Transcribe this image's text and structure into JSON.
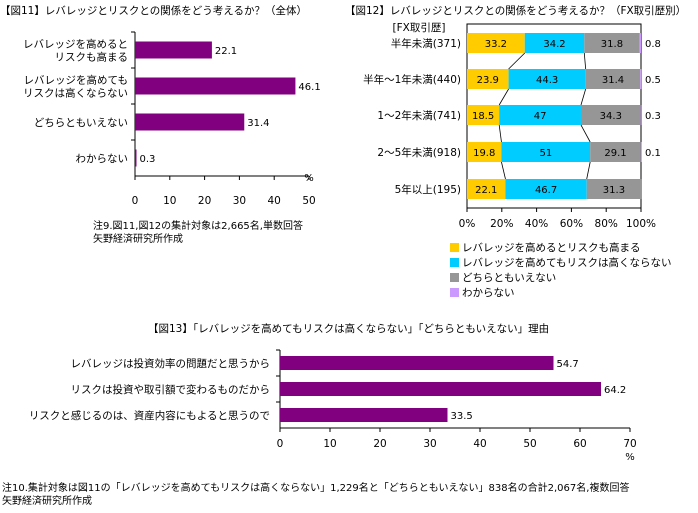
{
  "fig11": {
    "title": "【図11】レバレッジとリスクとの関係をどう考えるか？（全体）",
    "note_lines": [
      "注9.図11,図12の集計対象は2,665名,単数回答",
      "矢野経済研究所作成"
    ]
  },
  "fig12": {
    "title": "【図12】レバレッジとリスクとの関係をどう考えるか？（FX取引歴別）"
  },
  "fig13": {
    "title": "【図13】「レバレッジを高めてもリスクは高くならない」「どちらともいえない」理由",
    "note_lines": [
      "注10.集計対象は図11の「レバレッジを高めてもリスクは高くならない」1,229名と「どちらともいえない」838名の合計2,067名,複数回答",
      "矢野経済研究所作成"
    ]
  },
  "chart_data": [
    {
      "type": "bar",
      "orientation": "horizontal",
      "title": "【図11】レバレッジとリスクとの関係をどう考えるか？（全体）",
      "categories": [
        [
          "レバレッジを高めると",
          "リスクも高まる"
        ],
        [
          "レバレッジを高めても",
          "リスクは高くならない"
        ],
        [
          "どちらともいえない"
        ],
        [
          "わからない"
        ]
      ],
      "values": [
        22.1,
        46.1,
        31.4,
        0.3
      ],
      "xlim": [
        0,
        50
      ],
      "ticks": [
        0,
        10,
        20,
        30,
        40,
        50
      ],
      "unit": "%",
      "color": "#800080"
    },
    {
      "type": "bar",
      "orientation": "horizontal",
      "stacked": true,
      "title": "【図12】レバレッジとリスクとの関係をどう考えるか？（FX取引歴別）",
      "category_header": "[FX取引歴]",
      "categories": [
        "半年未満(371)",
        "半年～1年未満(440)",
        "1～2年未満(741)",
        "2～5年未満(918)",
        "5年以上(195)"
      ],
      "series": [
        {
          "name": "レバレッジを高めるとリスクも高まる",
          "color": "#ffcc00",
          "values": [
            33.2,
            23.9,
            18.5,
            19.8,
            22.1
          ]
        },
        {
          "name": "レバレッジを高めてもリスクは高くならない",
          "color": "#00ccff",
          "values": [
            34.2,
            44.3,
            47,
            51,
            46.7
          ]
        },
        {
          "name": "どちらともいえない",
          "color": "#969696",
          "values": [
            31.8,
            31.4,
            34.3,
            29.1,
            31.3
          ]
        },
        {
          "name": "わからない",
          "color": "#cc99ff",
          "values": [
            0.8,
            0.5,
            0.3,
            0.1,
            0
          ]
        }
      ],
      "value_labels": [
        [
          "33.2",
          "34.2",
          "31.8",
          "0.8"
        ],
        [
          "23.9",
          "44.3",
          "31.4",
          "0.5"
        ],
        [
          "18.5",
          "47",
          "34.3",
          "0.3"
        ],
        [
          "19.8",
          "51",
          "29.1",
          "0.1"
        ],
        [
          "22.1",
          "46.7",
          "31.3",
          ""
        ]
      ],
      "xlim": [
        0,
        100
      ],
      "tick_labels": [
        "0%",
        "20%",
        "40%",
        "60%",
        "80%",
        "100%"
      ],
      "legend_position": "bottom"
    },
    {
      "type": "bar",
      "orientation": "horizontal",
      "title": "【図13】「レバレッジを高めてもリスクは高くならない」「どちらともいえない」理由",
      "categories": [
        "レバレッジは投資効率の問題だと思うから",
        "リスクは投資や取引額で変わるものだから",
        "リスクと感じるのは、資産内容にもよると思うので"
      ],
      "values": [
        54.7,
        64.2,
        33.5
      ],
      "xlim": [
        0,
        70
      ],
      "ticks": [
        0,
        10,
        20,
        30,
        40,
        50,
        60,
        70
      ],
      "unit": "%",
      "color": "#800080"
    }
  ]
}
